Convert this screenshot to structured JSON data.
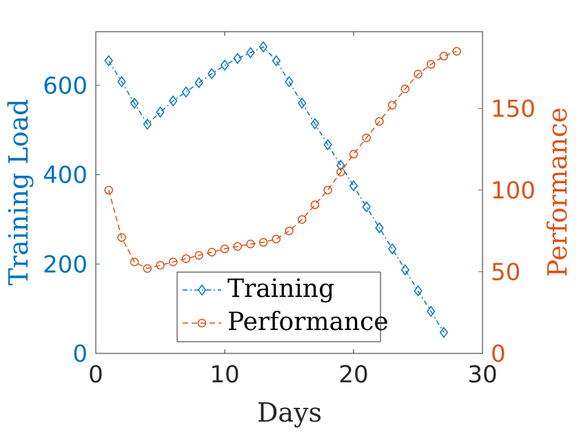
{
  "chart_data": {
    "type": "line",
    "title": "",
    "xlabel": "Days",
    "ylabel_left": "Training Load",
    "ylabel_right": "Performance",
    "xlim": [
      0,
      30
    ],
    "ylim_left": [
      0,
      720
    ],
    "ylim_right": [
      0,
      197
    ],
    "xticks": [
      0,
      10,
      20,
      30
    ],
    "yticks_left": [
      0,
      200,
      400,
      600
    ],
    "yticks_right": [
      0,
      50,
      100,
      150
    ],
    "grid": false,
    "legend_position": "bottom-center",
    "colors": {
      "left_axis": "#0072BD",
      "right_axis": "#D95319",
      "box": "#262626"
    },
    "series": [
      {
        "name": "Training",
        "axis": "left",
        "style": "dash-dot",
        "marker": "diamond",
        "x": [
          1,
          2,
          3,
          4,
          5,
          6,
          7,
          8,
          9,
          10,
          11,
          12,
          13,
          14,
          15,
          16,
          17,
          18,
          19,
          20,
          21,
          22,
          23,
          24,
          25,
          26,
          27
        ],
        "values": [
          655,
          608,
          560,
          513,
          540,
          565,
          585,
          606,
          626,
          645,
          660,
          673,
          686,
          655,
          608,
          560,
          514,
          467,
          421,
          375,
          328,
          281,
          234,
          187,
          140,
          94,
          47
        ]
      },
      {
        "name": "Performance",
        "axis": "right",
        "style": "dashed",
        "marker": "circle",
        "x": [
          1,
          2,
          3,
          4,
          5,
          6,
          7,
          8,
          9,
          10,
          11,
          12,
          13,
          14,
          15,
          16,
          17,
          18,
          19,
          20,
          21,
          22,
          23,
          24,
          25,
          26,
          27,
          28
        ],
        "values": [
          100,
          71,
          56,
          52,
          54,
          56,
          58,
          60,
          62,
          64,
          65.5,
          67,
          68,
          70,
          75,
          82,
          91,
          100,
          111,
          122,
          132,
          142,
          152,
          162,
          171,
          177,
          182,
          185
        ]
      }
    ]
  }
}
